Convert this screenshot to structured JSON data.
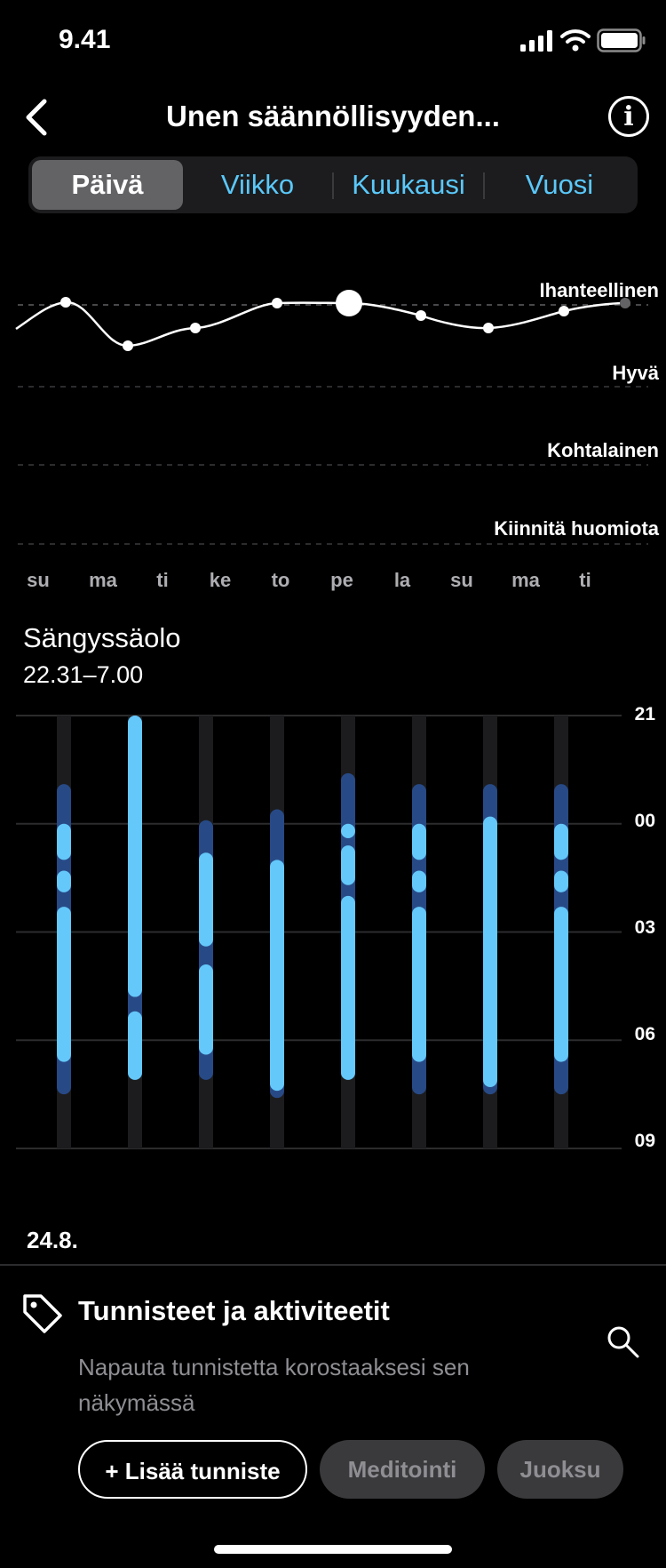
{
  "status_bar": {
    "time": "9.41"
  },
  "header": {
    "title": "Unen säännöllisyyden..."
  },
  "tabs": [
    {
      "label": "Päivä",
      "active": true
    },
    {
      "label": "Viikko",
      "active": false
    },
    {
      "label": "Kuukausi",
      "active": false
    },
    {
      "label": "Vuosi",
      "active": false
    }
  ],
  "quality_chart": {
    "levels": [
      "Ihanteellinen",
      "Hyvä",
      "Kohtalainen",
      "Kiinnitä huomiota"
    ],
    "days": [
      "su",
      "ma",
      "ti",
      "ke",
      "to",
      "pe",
      "la",
      "su",
      "ma",
      "ti"
    ],
    "selected_day": "pe"
  },
  "bed_section": {
    "title": "Sängyssäolo",
    "time_range": "22.31–7.00",
    "hour_labels": [
      "21",
      "00",
      "03",
      "06",
      "09"
    ],
    "date": "24.8."
  },
  "tags_panel": {
    "title": "Tunnisteet ja aktiviteetit",
    "description": "Napauta tunnistetta korostaaksesi sen näkymässä",
    "chips": [
      "+ Lisää tunniste",
      "Meditointi",
      "Juoksu"
    ]
  },
  "chart_data": [
    {
      "type": "line",
      "title": "",
      "y_categories": [
        "Kiinnitä huomiota",
        "Kohtalainen",
        "Hyvä",
        "Ihanteellinen"
      ],
      "x": [
        "su",
        "ma",
        "ti",
        "ke",
        "to",
        "pe",
        "la",
        "su",
        "ma",
        "ti"
      ],
      "values": [
        3.0,
        2.5,
        2.7,
        3.0,
        3.0,
        2.8,
        2.7,
        2.9,
        3.0,
        3.0
      ]
    },
    {
      "type": "bar",
      "title": "Sängyssäolo",
      "y_ticks": [
        "21",
        "00",
        "03",
        "06",
        "09"
      ],
      "ylim_hours_from_21": [
        0,
        12
      ],
      "columns": [
        {
          "in_bed": [
            1.9,
            10.5
          ],
          "asleep": [
            [
              3.0,
              4.0
            ],
            [
              4.3,
              4.9
            ],
            [
              5.3,
              9.6
            ]
          ]
        },
        {
          "in_bed": [
            0.0,
            10.1
          ],
          "asleep": [
            [
              0.0,
              7.8
            ],
            [
              8.2,
              10.1
            ]
          ]
        },
        {
          "in_bed": [
            2.9,
            10.1
          ],
          "asleep": [
            [
              3.8,
              6.4
            ],
            [
              6.9,
              9.4
            ]
          ]
        },
        {
          "in_bed": [
            2.6,
            10.6
          ],
          "asleep": [
            [
              4.0,
              10.4
            ]
          ]
        },
        {
          "in_bed": [
            1.6,
            10.1
          ],
          "asleep": [
            [
              3.0,
              3.4
            ],
            [
              3.6,
              4.7
            ],
            [
              5.0,
              10.1
            ]
          ]
        },
        {
          "in_bed": [
            1.9,
            10.5
          ],
          "asleep": [
            [
              3.0,
              4.0
            ],
            [
              4.3,
              4.9
            ],
            [
              5.3,
              9.6
            ]
          ]
        },
        {
          "in_bed": [
            1.9,
            10.5
          ],
          "asleep": [
            [
              2.8,
              10.3
            ]
          ]
        },
        {
          "in_bed": [
            1.9,
            10.5
          ],
          "asleep": [
            [
              3.0,
              4.0
            ],
            [
              4.3,
              4.9
            ],
            [
              5.3,
              9.6
            ]
          ]
        }
      ],
      "tagged_columns": [
        0,
        2,
        3,
        4
      ],
      "highlighted_tag_column": 4
    }
  ]
}
